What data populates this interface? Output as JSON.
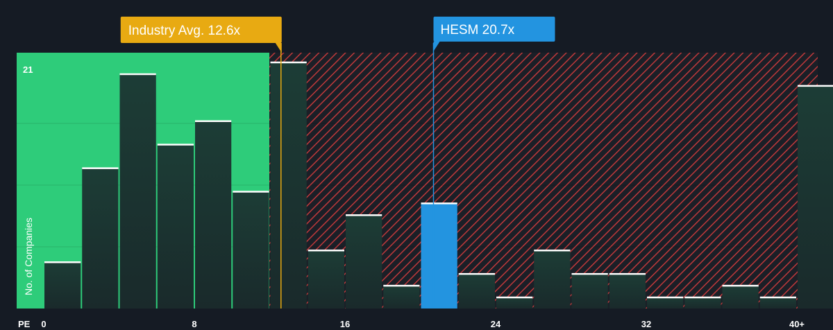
{
  "chart_data": {
    "type": "bar",
    "bin_width": 2,
    "x": [
      1,
      3,
      5,
      7,
      9,
      11,
      13,
      15,
      17,
      19,
      21,
      23,
      25,
      27,
      29,
      31,
      33,
      35,
      37,
      39,
      41
    ],
    "values": [
      4,
      12,
      20,
      14,
      16,
      10,
      21,
      5,
      8,
      2,
      9,
      3,
      1,
      5,
      3,
      3,
      1,
      1,
      2,
      1,
      19
    ],
    "highlight_index": 10,
    "xlabel": "PE",
    "ylabel": "No. of Companies",
    "xticks": [
      {
        "value": 0,
        "label": "0"
      },
      {
        "value": 8,
        "label": "8"
      },
      {
        "value": 16,
        "label": "16"
      },
      {
        "value": 24,
        "label": "24"
      },
      {
        "value": 32,
        "label": "32"
      },
      {
        "value": 40,
        "label": "40+"
      }
    ],
    "ytick_label": "21",
    "ymax": 21,
    "xlim": [
      0,
      40
    ],
    "industry_avg": {
      "value": 12.6,
      "label": "Industry Avg. 12.6x"
    },
    "company": {
      "value": 20.7,
      "label": "HESM 20.7x"
    },
    "colors": {
      "background": "#151b24",
      "undervalued_zone": "#2ecc7a",
      "bar": "#1c3a33",
      "highlight_bar": "#2394e0",
      "overvalued_hatch": "#c0393b",
      "industry_marker": "#e8aa12",
      "company_marker": "#2394e0",
      "bar_top": "#ffffff"
    }
  }
}
